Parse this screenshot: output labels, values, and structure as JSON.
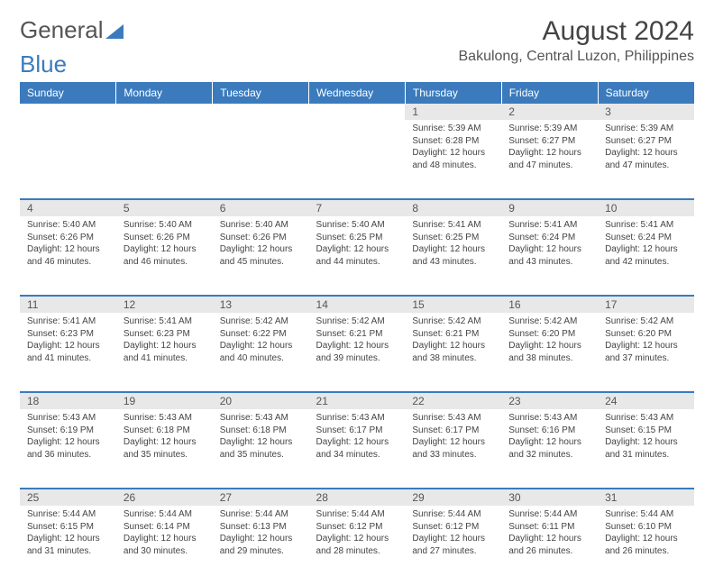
{
  "logo": {
    "text1": "General",
    "text2": "Blue"
  },
  "title": "August 2024",
  "location": "Bakulong, Central Luzon, Philippines",
  "colors": {
    "header_bg": "#3b7bbd",
    "header_fg": "#ffffff",
    "daynum_bg": "#e8e8e8",
    "border": "#3b7bbd"
  },
  "daysOfWeek": [
    "Sunday",
    "Monday",
    "Tuesday",
    "Wednesday",
    "Thursday",
    "Friday",
    "Saturday"
  ],
  "startOffset": 4,
  "days": [
    {
      "d": "1",
      "sunrise": "5:39 AM",
      "sunset": "6:28 PM",
      "daylight": "12 hours and 48 minutes."
    },
    {
      "d": "2",
      "sunrise": "5:39 AM",
      "sunset": "6:27 PM",
      "daylight": "12 hours and 47 minutes."
    },
    {
      "d": "3",
      "sunrise": "5:39 AM",
      "sunset": "6:27 PM",
      "daylight": "12 hours and 47 minutes."
    },
    {
      "d": "4",
      "sunrise": "5:40 AM",
      "sunset": "6:26 PM",
      "daylight": "12 hours and 46 minutes."
    },
    {
      "d": "5",
      "sunrise": "5:40 AM",
      "sunset": "6:26 PM",
      "daylight": "12 hours and 46 minutes."
    },
    {
      "d": "6",
      "sunrise": "5:40 AM",
      "sunset": "6:26 PM",
      "daylight": "12 hours and 45 minutes."
    },
    {
      "d": "7",
      "sunrise": "5:40 AM",
      "sunset": "6:25 PM",
      "daylight": "12 hours and 44 minutes."
    },
    {
      "d": "8",
      "sunrise": "5:41 AM",
      "sunset": "6:25 PM",
      "daylight": "12 hours and 43 minutes."
    },
    {
      "d": "9",
      "sunrise": "5:41 AM",
      "sunset": "6:24 PM",
      "daylight": "12 hours and 43 minutes."
    },
    {
      "d": "10",
      "sunrise": "5:41 AM",
      "sunset": "6:24 PM",
      "daylight": "12 hours and 42 minutes."
    },
    {
      "d": "11",
      "sunrise": "5:41 AM",
      "sunset": "6:23 PM",
      "daylight": "12 hours and 41 minutes."
    },
    {
      "d": "12",
      "sunrise": "5:41 AM",
      "sunset": "6:23 PM",
      "daylight": "12 hours and 41 minutes."
    },
    {
      "d": "13",
      "sunrise": "5:42 AM",
      "sunset": "6:22 PM",
      "daylight": "12 hours and 40 minutes."
    },
    {
      "d": "14",
      "sunrise": "5:42 AM",
      "sunset": "6:21 PM",
      "daylight": "12 hours and 39 minutes."
    },
    {
      "d": "15",
      "sunrise": "5:42 AM",
      "sunset": "6:21 PM",
      "daylight": "12 hours and 38 minutes."
    },
    {
      "d": "16",
      "sunrise": "5:42 AM",
      "sunset": "6:20 PM",
      "daylight": "12 hours and 38 minutes."
    },
    {
      "d": "17",
      "sunrise": "5:42 AM",
      "sunset": "6:20 PM",
      "daylight": "12 hours and 37 minutes."
    },
    {
      "d": "18",
      "sunrise": "5:43 AM",
      "sunset": "6:19 PM",
      "daylight": "12 hours and 36 minutes."
    },
    {
      "d": "19",
      "sunrise": "5:43 AM",
      "sunset": "6:18 PM",
      "daylight": "12 hours and 35 minutes."
    },
    {
      "d": "20",
      "sunrise": "5:43 AM",
      "sunset": "6:18 PM",
      "daylight": "12 hours and 35 minutes."
    },
    {
      "d": "21",
      "sunrise": "5:43 AM",
      "sunset": "6:17 PM",
      "daylight": "12 hours and 34 minutes."
    },
    {
      "d": "22",
      "sunrise": "5:43 AM",
      "sunset": "6:17 PM",
      "daylight": "12 hours and 33 minutes."
    },
    {
      "d": "23",
      "sunrise": "5:43 AM",
      "sunset": "6:16 PM",
      "daylight": "12 hours and 32 minutes."
    },
    {
      "d": "24",
      "sunrise": "5:43 AM",
      "sunset": "6:15 PM",
      "daylight": "12 hours and 31 minutes."
    },
    {
      "d": "25",
      "sunrise": "5:44 AM",
      "sunset": "6:15 PM",
      "daylight": "12 hours and 31 minutes."
    },
    {
      "d": "26",
      "sunrise": "5:44 AM",
      "sunset": "6:14 PM",
      "daylight": "12 hours and 30 minutes."
    },
    {
      "d": "27",
      "sunrise": "5:44 AM",
      "sunset": "6:13 PM",
      "daylight": "12 hours and 29 minutes."
    },
    {
      "d": "28",
      "sunrise": "5:44 AM",
      "sunset": "6:12 PM",
      "daylight": "12 hours and 28 minutes."
    },
    {
      "d": "29",
      "sunrise": "5:44 AM",
      "sunset": "6:12 PM",
      "daylight": "12 hours and 27 minutes."
    },
    {
      "d": "30",
      "sunrise": "5:44 AM",
      "sunset": "6:11 PM",
      "daylight": "12 hours and 26 minutes."
    },
    {
      "d": "31",
      "sunrise": "5:44 AM",
      "sunset": "6:10 PM",
      "daylight": "12 hours and 26 minutes."
    }
  ],
  "labels": {
    "sunrise": "Sunrise:",
    "sunset": "Sunset:",
    "daylight": "Daylight:"
  }
}
